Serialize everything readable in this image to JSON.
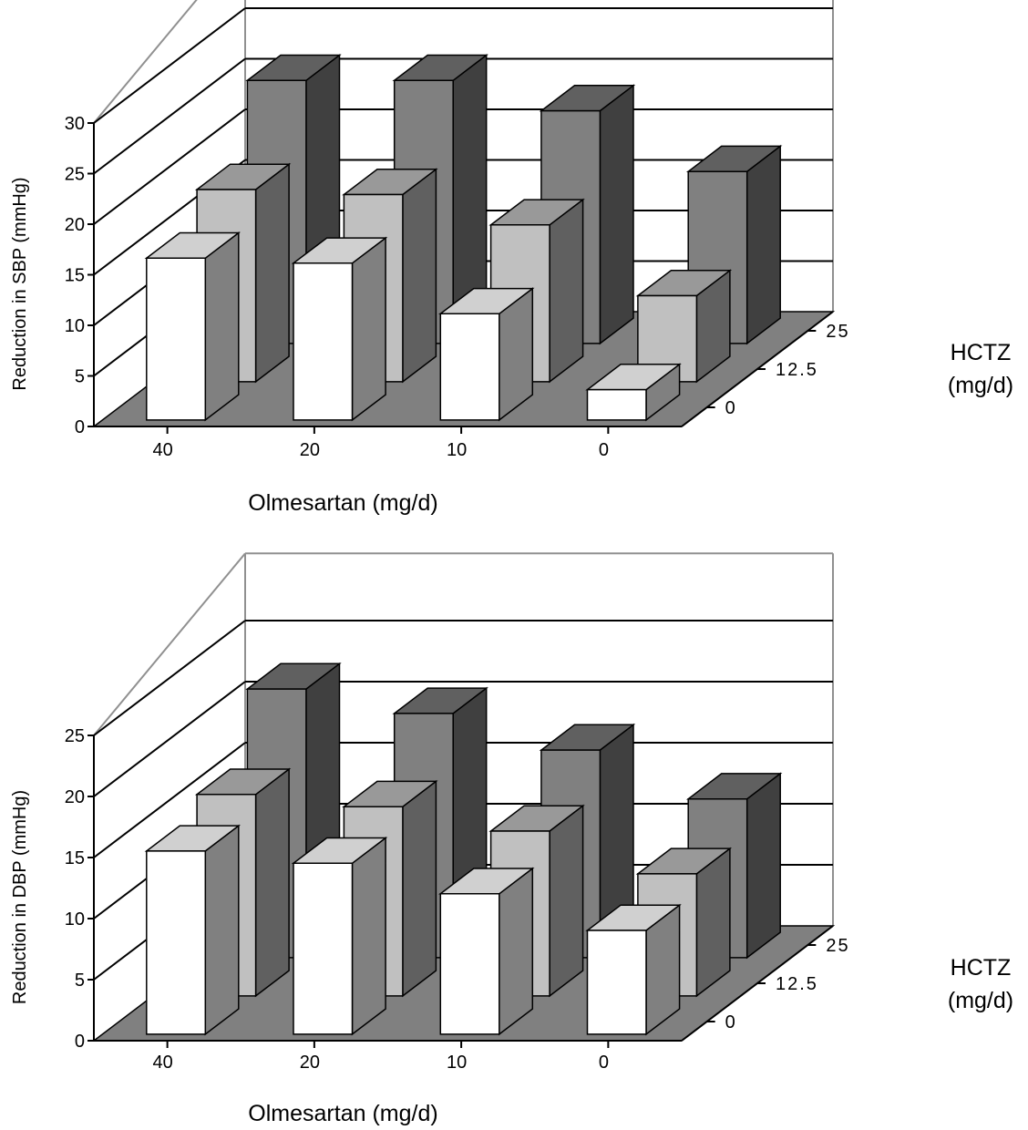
{
  "chart_data": [
    {
      "type": "bar",
      "subtype": "3d-bar",
      "title": "",
      "ylabel": "Reduction in SBP (mmHg)",
      "xlabel": "Olmesartan (mg/d)",
      "zlabel_line1": "HCTZ",
      "zlabel_line2": "(mg/d)",
      "ylim": [
        0,
        30
      ],
      "y_ticks": [
        "0",
        "5",
        "10",
        "15",
        "20",
        "25",
        "30"
      ],
      "categories": [
        "40",
        "20",
        "10",
        "0"
      ],
      "depth_labels": [
        "25",
        "12.5",
        "0"
      ],
      "grid": true,
      "series": [
        {
          "name": "25",
          "values": [
            26,
            26,
            23,
            17
          ]
        },
        {
          "name": "12.5",
          "values": [
            19,
            18.5,
            15.5,
            8.5
          ]
        },
        {
          "name": "0",
          "values": [
            16,
            15.5,
            10.5,
            3
          ]
        }
      ],
      "colors": {
        "series_front": [
          "#808080",
          "#c0c0c0",
          "#ffffff"
        ],
        "series_side": [
          "#404040",
          "#606060",
          "#808080"
        ],
        "series_top": [
          "#606060",
          "#999999",
          "#d0d0d0"
        ],
        "floor": "#808080",
        "wall_border": "#909090"
      }
    },
    {
      "type": "bar",
      "subtype": "3d-bar",
      "title": "",
      "ylabel": "Reduction in DBP (mmHg)",
      "xlabel": "Olmesartan (mg/d)",
      "zlabel_line1": "HCTZ",
      "zlabel_line2": "(mg/d)",
      "ylim": [
        0,
        25
      ],
      "y_ticks": [
        "0",
        "5",
        "10",
        "15",
        "20",
        "25"
      ],
      "categories": [
        "40",
        "20",
        "10",
        "0"
      ],
      "depth_labels": [
        "25",
        "12.5",
        "0"
      ],
      "grid": true,
      "series": [
        {
          "name": "25",
          "values": [
            22,
            20,
            17,
            13
          ]
        },
        {
          "name": "12.5",
          "values": [
            16.5,
            15.5,
            13.5,
            10
          ]
        },
        {
          "name": "0",
          "values": [
            15,
            14,
            11.5,
            8.5
          ]
        }
      ],
      "colors": {
        "series_front": [
          "#808080",
          "#c0c0c0",
          "#ffffff"
        ],
        "series_side": [
          "#404040",
          "#606060",
          "#808080"
        ],
        "series_top": [
          "#606060",
          "#999999",
          "#d0d0d0"
        ],
        "floor": "#808080",
        "wall_border": "#909090"
      }
    }
  ]
}
